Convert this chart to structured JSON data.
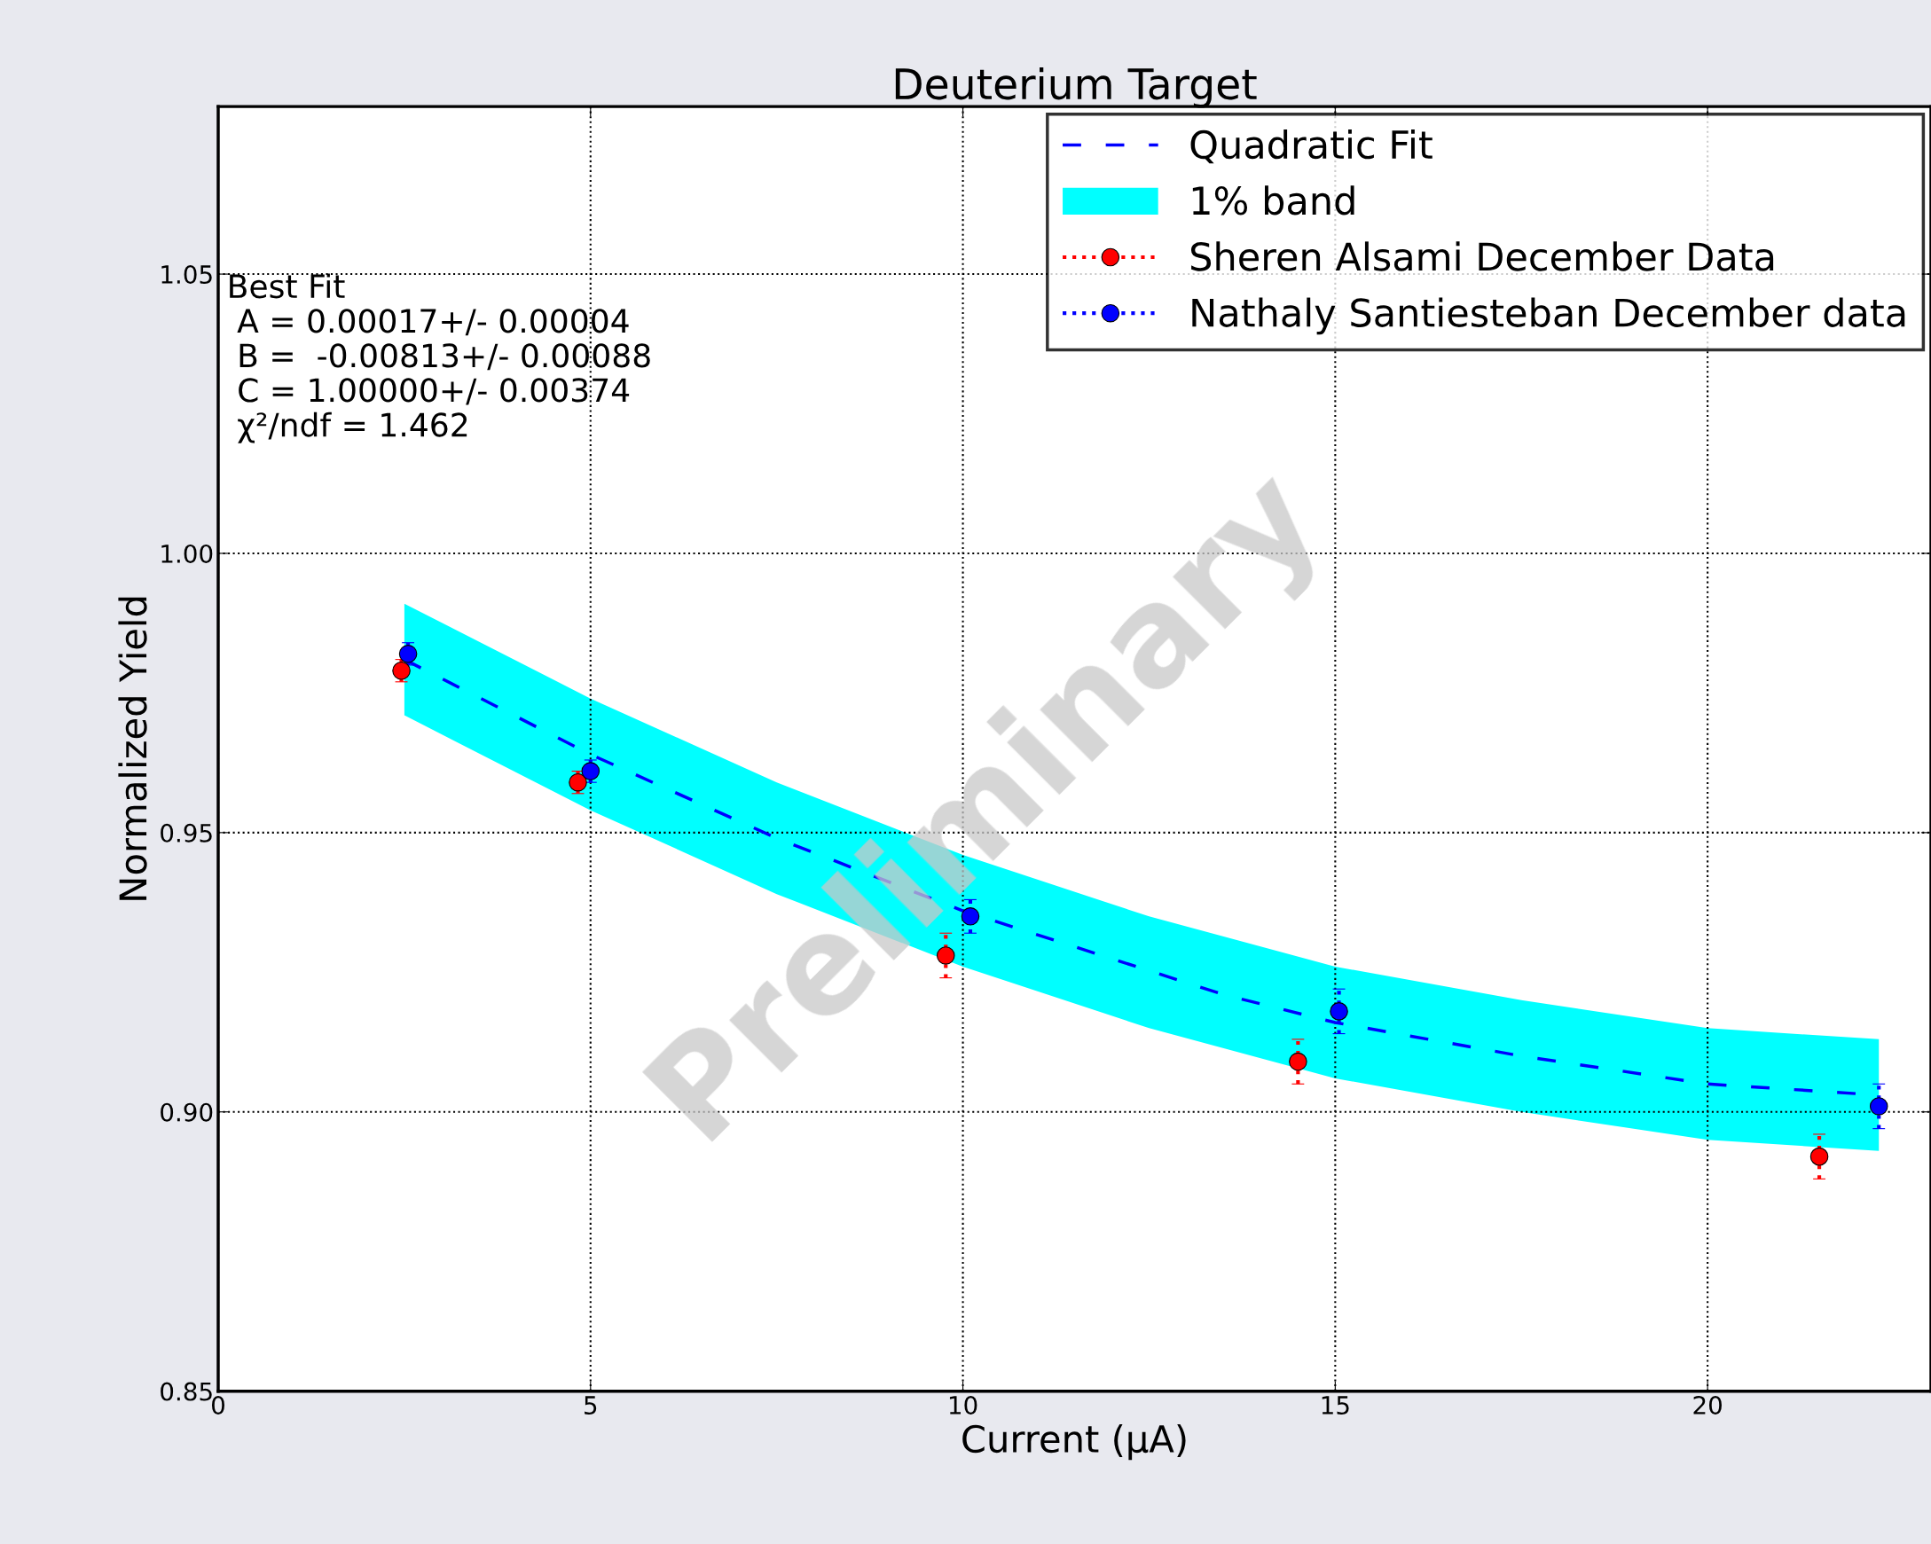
{
  "chart_data": {
    "type": "scatter",
    "title": "Deuterium Target",
    "xlabel": "Current (μA)",
    "ylabel": "Normalized Yield",
    "xlim": [
      0,
      23
    ],
    "xticks": [
      0,
      5,
      10,
      15,
      20
    ],
    "ylim": [
      0.85,
      1.08
    ],
    "yticks": [
      {
        "value": 0.85,
        "label": "0.85"
      },
      {
        "value": 0.9,
        "label": "0.90"
      },
      {
        "value": 0.95,
        "label": "0.95"
      },
      {
        "value": 1.0,
        "label": "1.00"
      },
      {
        "value": 1.05,
        "label": "1.05"
      }
    ],
    "grid": true,
    "legend": "top right",
    "annotations": [
      "Best Fit\n A = 0.00017+/- 0.00004\n B =  -0.00813+/- 0.00088\n C = 1.00000+/- 0.00374\n χ²/ndf = 1.462",
      "Preliminary"
    ],
    "series": [
      {
        "name": "Quadratic Fit",
        "type": "line",
        "line_style": "dashed",
        "marker": "none",
        "color": "#0000ff",
        "x": [
          2.5,
          5,
          7.5,
          10,
          13.5,
          15,
          17.5,
          20,
          22.3
        ],
        "values": [
          0.981,
          0.964,
          0.949,
          0.936,
          0.921,
          0.916,
          0.91,
          0.905,
          0.903
        ]
      },
      {
        "name": "1% band",
        "type": "area",
        "color": "#00ffff",
        "x": [
          2.5,
          5,
          7.5,
          10,
          12.5,
          15,
          17.5,
          20,
          22.3
        ],
        "values": [
          null,
          null,
          null,
          null,
          null,
          null,
          null,
          null,
          null
        ],
        "lower": [
          0.971,
          0.954,
          0.939,
          0.926,
          0.915,
          0.906,
          0.9,
          0.895,
          0.893
        ],
        "upper": [
          0.991,
          0.974,
          0.959,
          0.946,
          0.935,
          0.926,
          0.92,
          0.915,
          0.913
        ]
      },
      {
        "name": "Sheren Alsami December Data",
        "marker": "circle",
        "color": "#ff0000",
        "x": [
          2.46,
          4.83,
          9.77,
          14.5,
          21.5
        ],
        "values": [
          0.979,
          0.959,
          0.928,
          0.909,
          0.892
        ],
        "errors": [
          0.002,
          0.002,
          0.004,
          0.004,
          0.004
        ]
      },
      {
        "name": "Nathaly Santiesteban December data",
        "marker": "circle",
        "color": "#0000ff",
        "x": [
          2.55,
          5.0,
          10.1,
          15.05,
          22.3
        ],
        "values": [
          0.982,
          0.961,
          0.935,
          0.918,
          0.901
        ],
        "errors": [
          0.002,
          0.002,
          0.003,
          0.004,
          0.004
        ]
      }
    ]
  }
}
